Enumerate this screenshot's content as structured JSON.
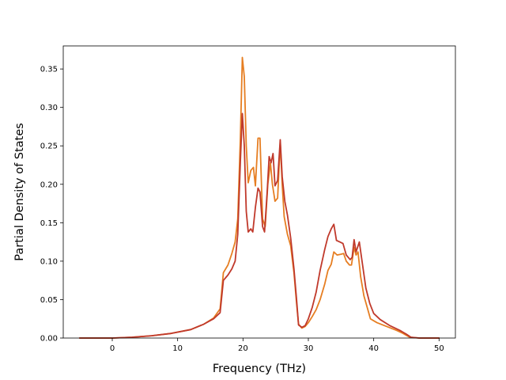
{
  "chart_data": {
    "type": "line",
    "title": "",
    "xlabel": "Frequency (THz)",
    "ylabel": "Partial Density of States",
    "xlim": [
      -7.5,
      52.5
    ],
    "ylim": [
      0.0,
      0.38
    ],
    "xticks": [
      0,
      10,
      20,
      30,
      40,
      50
    ],
    "xtick_labels": [
      "0",
      "10",
      "20",
      "30",
      "40",
      "50"
    ],
    "yticks": [
      0.0,
      0.05,
      0.1,
      0.15,
      0.2,
      0.25,
      0.3,
      0.35
    ],
    "ytick_labels": [
      "0.00",
      "0.05",
      "0.10",
      "0.15",
      "0.20",
      "0.25",
      "0.30",
      "0.35"
    ],
    "grid": false,
    "legend": false,
    "series": [
      {
        "color": "#e67e22",
        "points": [
          [
            -5,
            0
          ],
          [
            0,
            0
          ],
          [
            3,
            0.001
          ],
          [
            6,
            0.003
          ],
          [
            9,
            0.006
          ],
          [
            12,
            0.011
          ],
          [
            14,
            0.018
          ],
          [
            15.5,
            0.026
          ],
          [
            16.5,
            0.038
          ],
          [
            17,
            0.085
          ],
          [
            17.7,
            0.095
          ],
          [
            18.3,
            0.11
          ],
          [
            18.8,
            0.125
          ],
          [
            19.2,
            0.155
          ],
          [
            19.6,
            0.26
          ],
          [
            19.9,
            0.365
          ],
          [
            20.2,
            0.34
          ],
          [
            20.5,
            0.25
          ],
          [
            20.8,
            0.202
          ],
          [
            21.2,
            0.218
          ],
          [
            21.6,
            0.222
          ],
          [
            21.9,
            0.198
          ],
          [
            22.3,
            0.26
          ],
          [
            22.6,
            0.26
          ],
          [
            23.0,
            0.155
          ],
          [
            23.4,
            0.145
          ],
          [
            23.8,
            0.2
          ],
          [
            24.2,
            0.228
          ],
          [
            24.5,
            0.2
          ],
          [
            24.9,
            0.178
          ],
          [
            25.3,
            0.182
          ],
          [
            25.7,
            0.255
          ],
          [
            26.0,
            0.2
          ],
          [
            26.3,
            0.158
          ],
          [
            26.8,
            0.135
          ],
          [
            27.3,
            0.12
          ],
          [
            27.8,
            0.085
          ],
          [
            28.2,
            0.045
          ],
          [
            28.5,
            0.018
          ],
          [
            29.0,
            0.013
          ],
          [
            29.5,
            0.015
          ],
          [
            30.0,
            0.02
          ],
          [
            30.6,
            0.028
          ],
          [
            31.2,
            0.037
          ],
          [
            31.8,
            0.05
          ],
          [
            32.5,
            0.07
          ],
          [
            33.0,
            0.088
          ],
          [
            33.5,
            0.096
          ],
          [
            33.9,
            0.112
          ],
          [
            34.4,
            0.108
          ],
          [
            35.0,
            0.109
          ],
          [
            35.4,
            0.11
          ],
          [
            35.8,
            0.1
          ],
          [
            36.3,
            0.095
          ],
          [
            36.6,
            0.095
          ],
          [
            37.0,
            0.118
          ],
          [
            37.3,
            0.108
          ],
          [
            37.6,
            0.112
          ],
          [
            38.0,
            0.08
          ],
          [
            38.5,
            0.055
          ],
          [
            39.0,
            0.04
          ],
          [
            39.5,
            0.025
          ],
          [
            40.5,
            0.02
          ],
          [
            42.0,
            0.015
          ],
          [
            43.5,
            0.01
          ],
          [
            44.5,
            0.006
          ],
          [
            45.5,
            0.001
          ],
          [
            47,
            0
          ],
          [
            50,
            0
          ]
        ]
      },
      {
        "color": "#c0392b",
        "points": [
          [
            -5,
            0
          ],
          [
            0,
            0
          ],
          [
            3,
            0.001
          ],
          [
            6,
            0.003
          ],
          [
            9,
            0.006
          ],
          [
            12,
            0.011
          ],
          [
            14,
            0.018
          ],
          [
            15.5,
            0.025
          ],
          [
            16.5,
            0.033
          ],
          [
            17,
            0.075
          ],
          [
            17.7,
            0.082
          ],
          [
            18.3,
            0.09
          ],
          [
            18.8,
            0.1
          ],
          [
            19.2,
            0.135
          ],
          [
            19.6,
            0.23
          ],
          [
            19.9,
            0.292
          ],
          [
            20.2,
            0.25
          ],
          [
            20.5,
            0.165
          ],
          [
            20.8,
            0.138
          ],
          [
            21.2,
            0.142
          ],
          [
            21.5,
            0.138
          ],
          [
            21.9,
            0.17
          ],
          [
            22.3,
            0.195
          ],
          [
            22.6,
            0.19
          ],
          [
            23.0,
            0.145
          ],
          [
            23.3,
            0.138
          ],
          [
            23.7,
            0.19
          ],
          [
            24.0,
            0.236
          ],
          [
            24.3,
            0.228
          ],
          [
            24.6,
            0.24
          ],
          [
            24.9,
            0.198
          ],
          [
            25.3,
            0.205
          ],
          [
            25.7,
            0.258
          ],
          [
            26.0,
            0.21
          ],
          [
            26.4,
            0.178
          ],
          [
            26.8,
            0.16
          ],
          [
            27.3,
            0.13
          ],
          [
            27.8,
            0.09
          ],
          [
            28.2,
            0.05
          ],
          [
            28.5,
            0.017
          ],
          [
            29.0,
            0.014
          ],
          [
            29.5,
            0.016
          ],
          [
            30.0,
            0.025
          ],
          [
            30.6,
            0.04
          ],
          [
            31.2,
            0.06
          ],
          [
            31.8,
            0.088
          ],
          [
            32.5,
            0.115
          ],
          [
            33.0,
            0.132
          ],
          [
            33.5,
            0.142
          ],
          [
            33.9,
            0.148
          ],
          [
            34.3,
            0.127
          ],
          [
            34.8,
            0.125
          ],
          [
            35.3,
            0.123
          ],
          [
            35.8,
            0.108
          ],
          [
            36.4,
            0.102
          ],
          [
            36.7,
            0.105
          ],
          [
            37.0,
            0.128
          ],
          [
            37.3,
            0.112
          ],
          [
            37.8,
            0.125
          ],
          [
            38.3,
            0.095
          ],
          [
            38.8,
            0.065
          ],
          [
            39.4,
            0.045
          ],
          [
            40.0,
            0.032
          ],
          [
            41.0,
            0.024
          ],
          [
            42.5,
            0.016
          ],
          [
            44.0,
            0.01
          ],
          [
            45.0,
            0.005
          ],
          [
            45.7,
            0.001
          ],
          [
            47,
            0
          ],
          [
            50,
            0
          ]
        ]
      }
    ]
  }
}
